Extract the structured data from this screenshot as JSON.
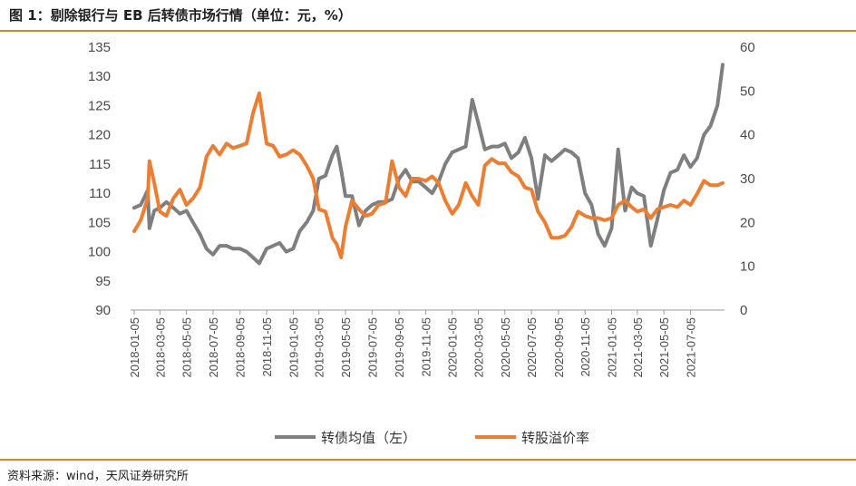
{
  "title": "图 1：剔除银行与 EB 后转债市场行情（单位：元，%）",
  "source": "资料来源：wind，天风证券研究所",
  "colors": {
    "gray_series": "#7f7f7f",
    "orange_series": "#ed7d31",
    "rule": "#e87d2c",
    "axis": "#999999"
  },
  "chart_data": {
    "type": "line",
    "grid": false,
    "legend_position": "bottom",
    "y_left": {
      "min": 90,
      "max": 135,
      "step": 5
    },
    "y_right": {
      "min": 0,
      "max": 60,
      "step": 10
    },
    "x_ticks": [
      "2018-01-05",
      "2018-03-05",
      "2018-05-05",
      "2018-07-05",
      "2018-09-05",
      "2018-11-05",
      "2019-01-05",
      "2019-03-05",
      "2019-05-05",
      "2019-07-05",
      "2019-09-05",
      "2019-11-05",
      "2020-01-05",
      "2020-03-05",
      "2020-05-05",
      "2020-07-05",
      "2020-09-05",
      "2020-11-05",
      "2021-01-05",
      "2021-03-05",
      "2021-05-05",
      "2021-07-05"
    ],
    "series": [
      {
        "name": "转债均值（左）",
        "axis": "left",
        "points": [
          [
            "2018-01-05",
            107.5
          ],
          [
            "2018-01-20",
            108.0
          ],
          [
            "2018-02-05",
            110.5
          ],
          [
            "2018-02-09",
            104.0
          ],
          [
            "2018-02-20",
            107.0
          ],
          [
            "2018-03-05",
            107.5
          ],
          [
            "2018-03-20",
            108.5
          ],
          [
            "2018-04-05",
            107.5
          ],
          [
            "2018-04-20",
            106.5
          ],
          [
            "2018-05-05",
            107.0
          ],
          [
            "2018-05-20",
            105.0
          ],
          [
            "2018-06-05",
            103.0
          ],
          [
            "2018-06-20",
            100.5
          ],
          [
            "2018-07-05",
            99.5
          ],
          [
            "2018-07-20",
            101.0
          ],
          [
            "2018-08-05",
            101.0
          ],
          [
            "2018-08-20",
            100.5
          ],
          [
            "2018-09-05",
            100.5
          ],
          [
            "2018-09-20",
            100.0
          ],
          [
            "2018-10-05",
            99.0
          ],
          [
            "2018-10-19",
            98.0
          ],
          [
            "2018-11-05",
            100.5
          ],
          [
            "2018-11-20",
            101.0
          ],
          [
            "2018-12-05",
            101.5
          ],
          [
            "2018-12-20",
            100.0
          ],
          [
            "2019-01-05",
            100.5
          ],
          [
            "2019-01-20",
            103.5
          ],
          [
            "2019-02-05",
            105.0
          ],
          [
            "2019-02-20",
            107.0
          ],
          [
            "2019-03-05",
            112.5
          ],
          [
            "2019-03-20",
            113.0
          ],
          [
            "2019-04-05",
            116.5
          ],
          [
            "2019-04-15",
            118.0
          ],
          [
            "2019-04-25",
            114.0
          ],
          [
            "2019-05-05",
            109.5
          ],
          [
            "2019-05-20",
            109.5
          ],
          [
            "2019-06-05",
            104.5
          ],
          [
            "2019-06-20",
            107.0
          ],
          [
            "2019-07-05",
            108.0
          ],
          [
            "2019-07-20",
            108.5
          ],
          [
            "2019-08-05",
            108.5
          ],
          [
            "2019-08-20",
            109.0
          ],
          [
            "2019-09-05",
            112.5
          ],
          [
            "2019-09-20",
            114.0
          ],
          [
            "2019-10-05",
            112.0
          ],
          [
            "2019-10-20",
            112.0
          ],
          [
            "2019-11-05",
            111.0
          ],
          [
            "2019-11-20",
            110.0
          ],
          [
            "2019-12-05",
            112.0
          ],
          [
            "2019-12-20",
            115.0
          ],
          [
            "2020-01-05",
            117.0
          ],
          [
            "2020-01-20",
            117.5
          ],
          [
            "2020-02-05",
            118.0
          ],
          [
            "2020-02-20",
            126.0
          ],
          [
            "2020-03-05",
            122.0
          ],
          [
            "2020-03-20",
            117.5
          ],
          [
            "2020-04-05",
            118.0
          ],
          [
            "2020-04-20",
            118.0
          ],
          [
            "2020-05-05",
            118.5
          ],
          [
            "2020-05-20",
            116.0
          ],
          [
            "2020-06-05",
            117.0
          ],
          [
            "2020-06-20",
            119.5
          ],
          [
            "2020-07-05",
            116.0
          ],
          [
            "2020-07-20",
            109.0
          ],
          [
            "2020-08-05",
            116.5
          ],
          [
            "2020-08-20",
            115.5
          ],
          [
            "2020-09-05",
            116.5
          ],
          [
            "2020-09-20",
            117.5
          ],
          [
            "2020-10-05",
            117.0
          ],
          [
            "2020-10-20",
            116.0
          ],
          [
            "2020-11-05",
            110.0
          ],
          [
            "2020-11-20",
            108.0
          ],
          [
            "2020-12-05",
            103.0
          ],
          [
            "2020-12-20",
            101.0
          ],
          [
            "2021-01-05",
            104.0
          ],
          [
            "2021-01-20",
            117.5
          ],
          [
            "2021-02-05",
            107.0
          ],
          [
            "2021-02-20",
            111.0
          ],
          [
            "2021-03-05",
            110.0
          ],
          [
            "2021-03-20",
            109.5
          ],
          [
            "2021-04-05",
            101.0
          ],
          [
            "2021-04-20",
            105.5
          ],
          [
            "2021-05-05",
            110.5
          ],
          [
            "2021-05-20",
            113.5
          ],
          [
            "2021-06-05",
            114.0
          ],
          [
            "2021-06-20",
            116.5
          ],
          [
            "2021-07-05",
            114.5
          ],
          [
            "2021-07-20",
            116.0
          ],
          [
            "2021-08-05",
            120.0
          ],
          [
            "2021-08-20",
            121.5
          ],
          [
            "2021-09-05",
            125.0
          ],
          [
            "2021-09-17",
            132.0
          ]
        ]
      },
      {
        "name": "转股溢价率",
        "axis": "right",
        "points": [
          [
            "2018-01-05",
            18.0
          ],
          [
            "2018-01-20",
            20.5
          ],
          [
            "2018-02-05",
            25.5
          ],
          [
            "2018-02-09",
            34.0
          ],
          [
            "2018-02-20",
            29.0
          ],
          [
            "2018-03-05",
            22.5
          ],
          [
            "2018-03-20",
            21.5
          ],
          [
            "2018-04-05",
            25.5
          ],
          [
            "2018-04-20",
            27.5
          ],
          [
            "2018-05-05",
            24.0
          ],
          [
            "2018-05-20",
            25.5
          ],
          [
            "2018-06-05",
            28.0
          ],
          [
            "2018-06-20",
            35.0
          ],
          [
            "2018-07-05",
            37.5
          ],
          [
            "2018-07-20",
            35.5
          ],
          [
            "2018-08-05",
            38.0
          ],
          [
            "2018-08-20",
            37.0
          ],
          [
            "2018-09-05",
            37.5
          ],
          [
            "2018-09-20",
            38.0
          ],
          [
            "2018-10-05",
            45.0
          ],
          [
            "2018-10-19",
            49.5
          ],
          [
            "2018-11-05",
            38.0
          ],
          [
            "2018-11-20",
            37.5
          ],
          [
            "2018-12-05",
            35.0
          ],
          [
            "2018-12-20",
            35.5
          ],
          [
            "2019-01-05",
            36.5
          ],
          [
            "2019-01-20",
            35.5
          ],
          [
            "2019-02-05",
            33.0
          ],
          [
            "2019-02-20",
            30.0
          ],
          [
            "2019-03-05",
            23.0
          ],
          [
            "2019-03-20",
            22.5
          ],
          [
            "2019-04-05",
            16.5
          ],
          [
            "2019-04-15",
            15.0
          ],
          [
            "2019-04-25",
            12.0
          ],
          [
            "2019-05-05",
            19.0
          ],
          [
            "2019-05-20",
            25.0
          ],
          [
            "2019-06-05",
            23.0
          ],
          [
            "2019-06-20",
            21.5
          ],
          [
            "2019-07-05",
            22.0
          ],
          [
            "2019-07-20",
            24.0
          ],
          [
            "2019-08-05",
            24.5
          ],
          [
            "2019-08-20",
            34.0
          ],
          [
            "2019-09-05",
            28.0
          ],
          [
            "2019-09-20",
            26.0
          ],
          [
            "2019-10-05",
            30.0
          ],
          [
            "2019-10-20",
            30.0
          ],
          [
            "2019-11-05",
            29.5
          ],
          [
            "2019-11-20",
            30.5
          ],
          [
            "2019-12-05",
            29.0
          ],
          [
            "2019-12-20",
            25.0
          ],
          [
            "2020-01-05",
            22.0
          ],
          [
            "2020-01-20",
            24.0
          ],
          [
            "2020-02-05",
            29.0
          ],
          [
            "2020-02-20",
            26.0
          ],
          [
            "2020-03-05",
            24.0
          ],
          [
            "2020-03-20",
            33.0
          ],
          [
            "2020-04-05",
            34.5
          ],
          [
            "2020-04-20",
            33.5
          ],
          [
            "2020-05-05",
            33.5
          ],
          [
            "2020-05-20",
            31.5
          ],
          [
            "2020-06-05",
            30.5
          ],
          [
            "2020-06-20",
            28.0
          ],
          [
            "2020-07-05",
            27.5
          ],
          [
            "2020-07-20",
            22.5
          ],
          [
            "2020-08-05",
            20.0
          ],
          [
            "2020-08-20",
            16.5
          ],
          [
            "2020-09-05",
            16.5
          ],
          [
            "2020-09-20",
            17.0
          ],
          [
            "2020-10-05",
            19.0
          ],
          [
            "2020-10-20",
            22.5
          ],
          [
            "2020-11-05",
            21.5
          ],
          [
            "2020-11-20",
            21.0
          ],
          [
            "2020-12-05",
            21.0
          ],
          [
            "2020-12-20",
            20.5
          ],
          [
            "2021-01-05",
            21.0
          ],
          [
            "2021-01-20",
            24.0
          ],
          [
            "2021-02-05",
            25.0
          ],
          [
            "2021-02-20",
            23.5
          ],
          [
            "2021-03-05",
            22.5
          ],
          [
            "2021-03-20",
            23.0
          ],
          [
            "2021-04-05",
            21.0
          ],
          [
            "2021-04-20",
            23.0
          ],
          [
            "2021-05-05",
            23.5
          ],
          [
            "2021-05-20",
            24.0
          ],
          [
            "2021-06-05",
            23.5
          ],
          [
            "2021-06-20",
            25.0
          ],
          [
            "2021-07-05",
            24.0
          ],
          [
            "2021-07-20",
            26.5
          ],
          [
            "2021-08-05",
            29.5
          ],
          [
            "2021-08-20",
            28.5
          ],
          [
            "2021-09-05",
            28.5
          ],
          [
            "2021-09-17",
            29.0
          ]
        ]
      }
    ]
  }
}
